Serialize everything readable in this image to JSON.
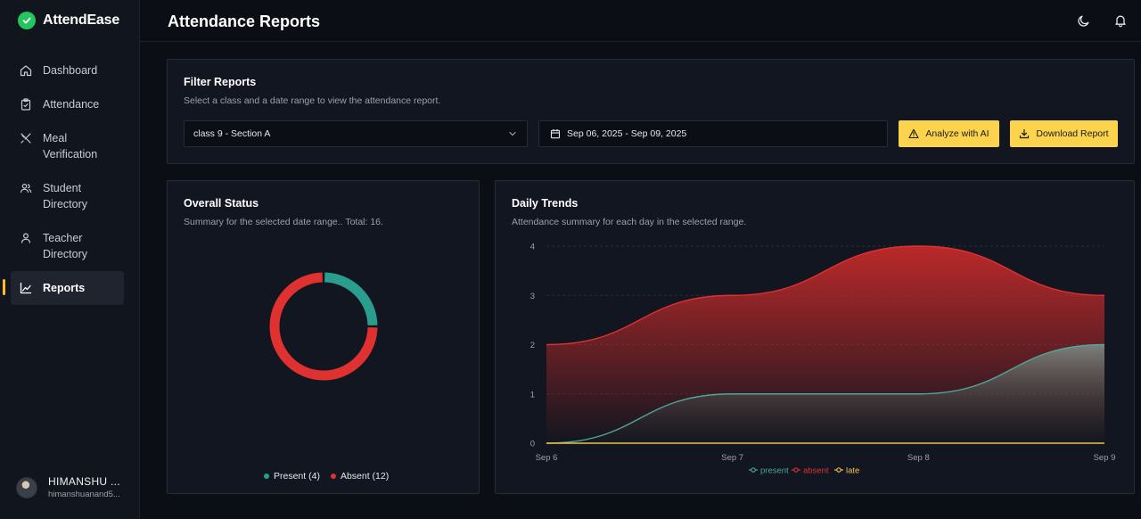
{
  "app": {
    "name": "AttendEase"
  },
  "sidebar": {
    "items": [
      {
        "label": "Dashboard",
        "icon": "home-icon"
      },
      {
        "label": "Attendance",
        "icon": "clipboard-icon"
      },
      {
        "label": "Meal Verification",
        "icon": "utensils-icon"
      },
      {
        "label": "Student Directory",
        "icon": "users-icon"
      },
      {
        "label": "Teacher Directory",
        "icon": "user-icon"
      },
      {
        "label": "Reports",
        "icon": "chart-icon",
        "active": true
      }
    ]
  },
  "user": {
    "name": "HIMANSHU ...",
    "email": "himanshuanand5..."
  },
  "header": {
    "title": "Attendance Reports",
    "icons": [
      "moon-icon",
      "bell-icon"
    ]
  },
  "filter": {
    "title": "Filter Reports",
    "subtitle": "Select a class and a date range to view the attendance report.",
    "class_value": "class 9 - Section A",
    "date_range": "Sep 06, 2025 - Sep 09, 2025",
    "analyze_label": "Analyze with AI",
    "download_label": "Download Report"
  },
  "overall": {
    "title": "Overall Status",
    "subtitle": "Summary for the selected date range.. Total: 16.",
    "legend": {
      "present": "Present (4)",
      "absent": "Absent (12)"
    }
  },
  "trends": {
    "title": "Daily Trends",
    "subtitle": "Attendance summary for each day in the selected range."
  },
  "colors": {
    "accent": "#fcd34d",
    "present": "#2a9d8f",
    "absent": "#e03131",
    "late": "#f2c14e",
    "brand": "#22c55e"
  },
  "chart_data": [
    {
      "type": "pie",
      "categories": [
        "Present",
        "Absent"
      ],
      "values": [
        4,
        12
      ],
      "legend": [
        "Present (4)",
        "Absent (12)"
      ]
    },
    {
      "type": "area",
      "categories": [
        "Sep 6",
        "Sep 7",
        "Sep 8",
        "Sep 9"
      ],
      "series": [
        {
          "name": "present",
          "values": [
            0,
            1,
            1,
            2
          ]
        },
        {
          "name": "absent",
          "values": [
            2,
            3,
            4,
            3
          ]
        },
        {
          "name": "late",
          "values": [
            0,
            0,
            0,
            0
          ]
        }
      ],
      "ylim": [
        0,
        4
      ],
      "yticks": [
        0,
        1,
        2,
        3,
        4
      ],
      "grid": true,
      "legend_position": "bottom"
    }
  ]
}
